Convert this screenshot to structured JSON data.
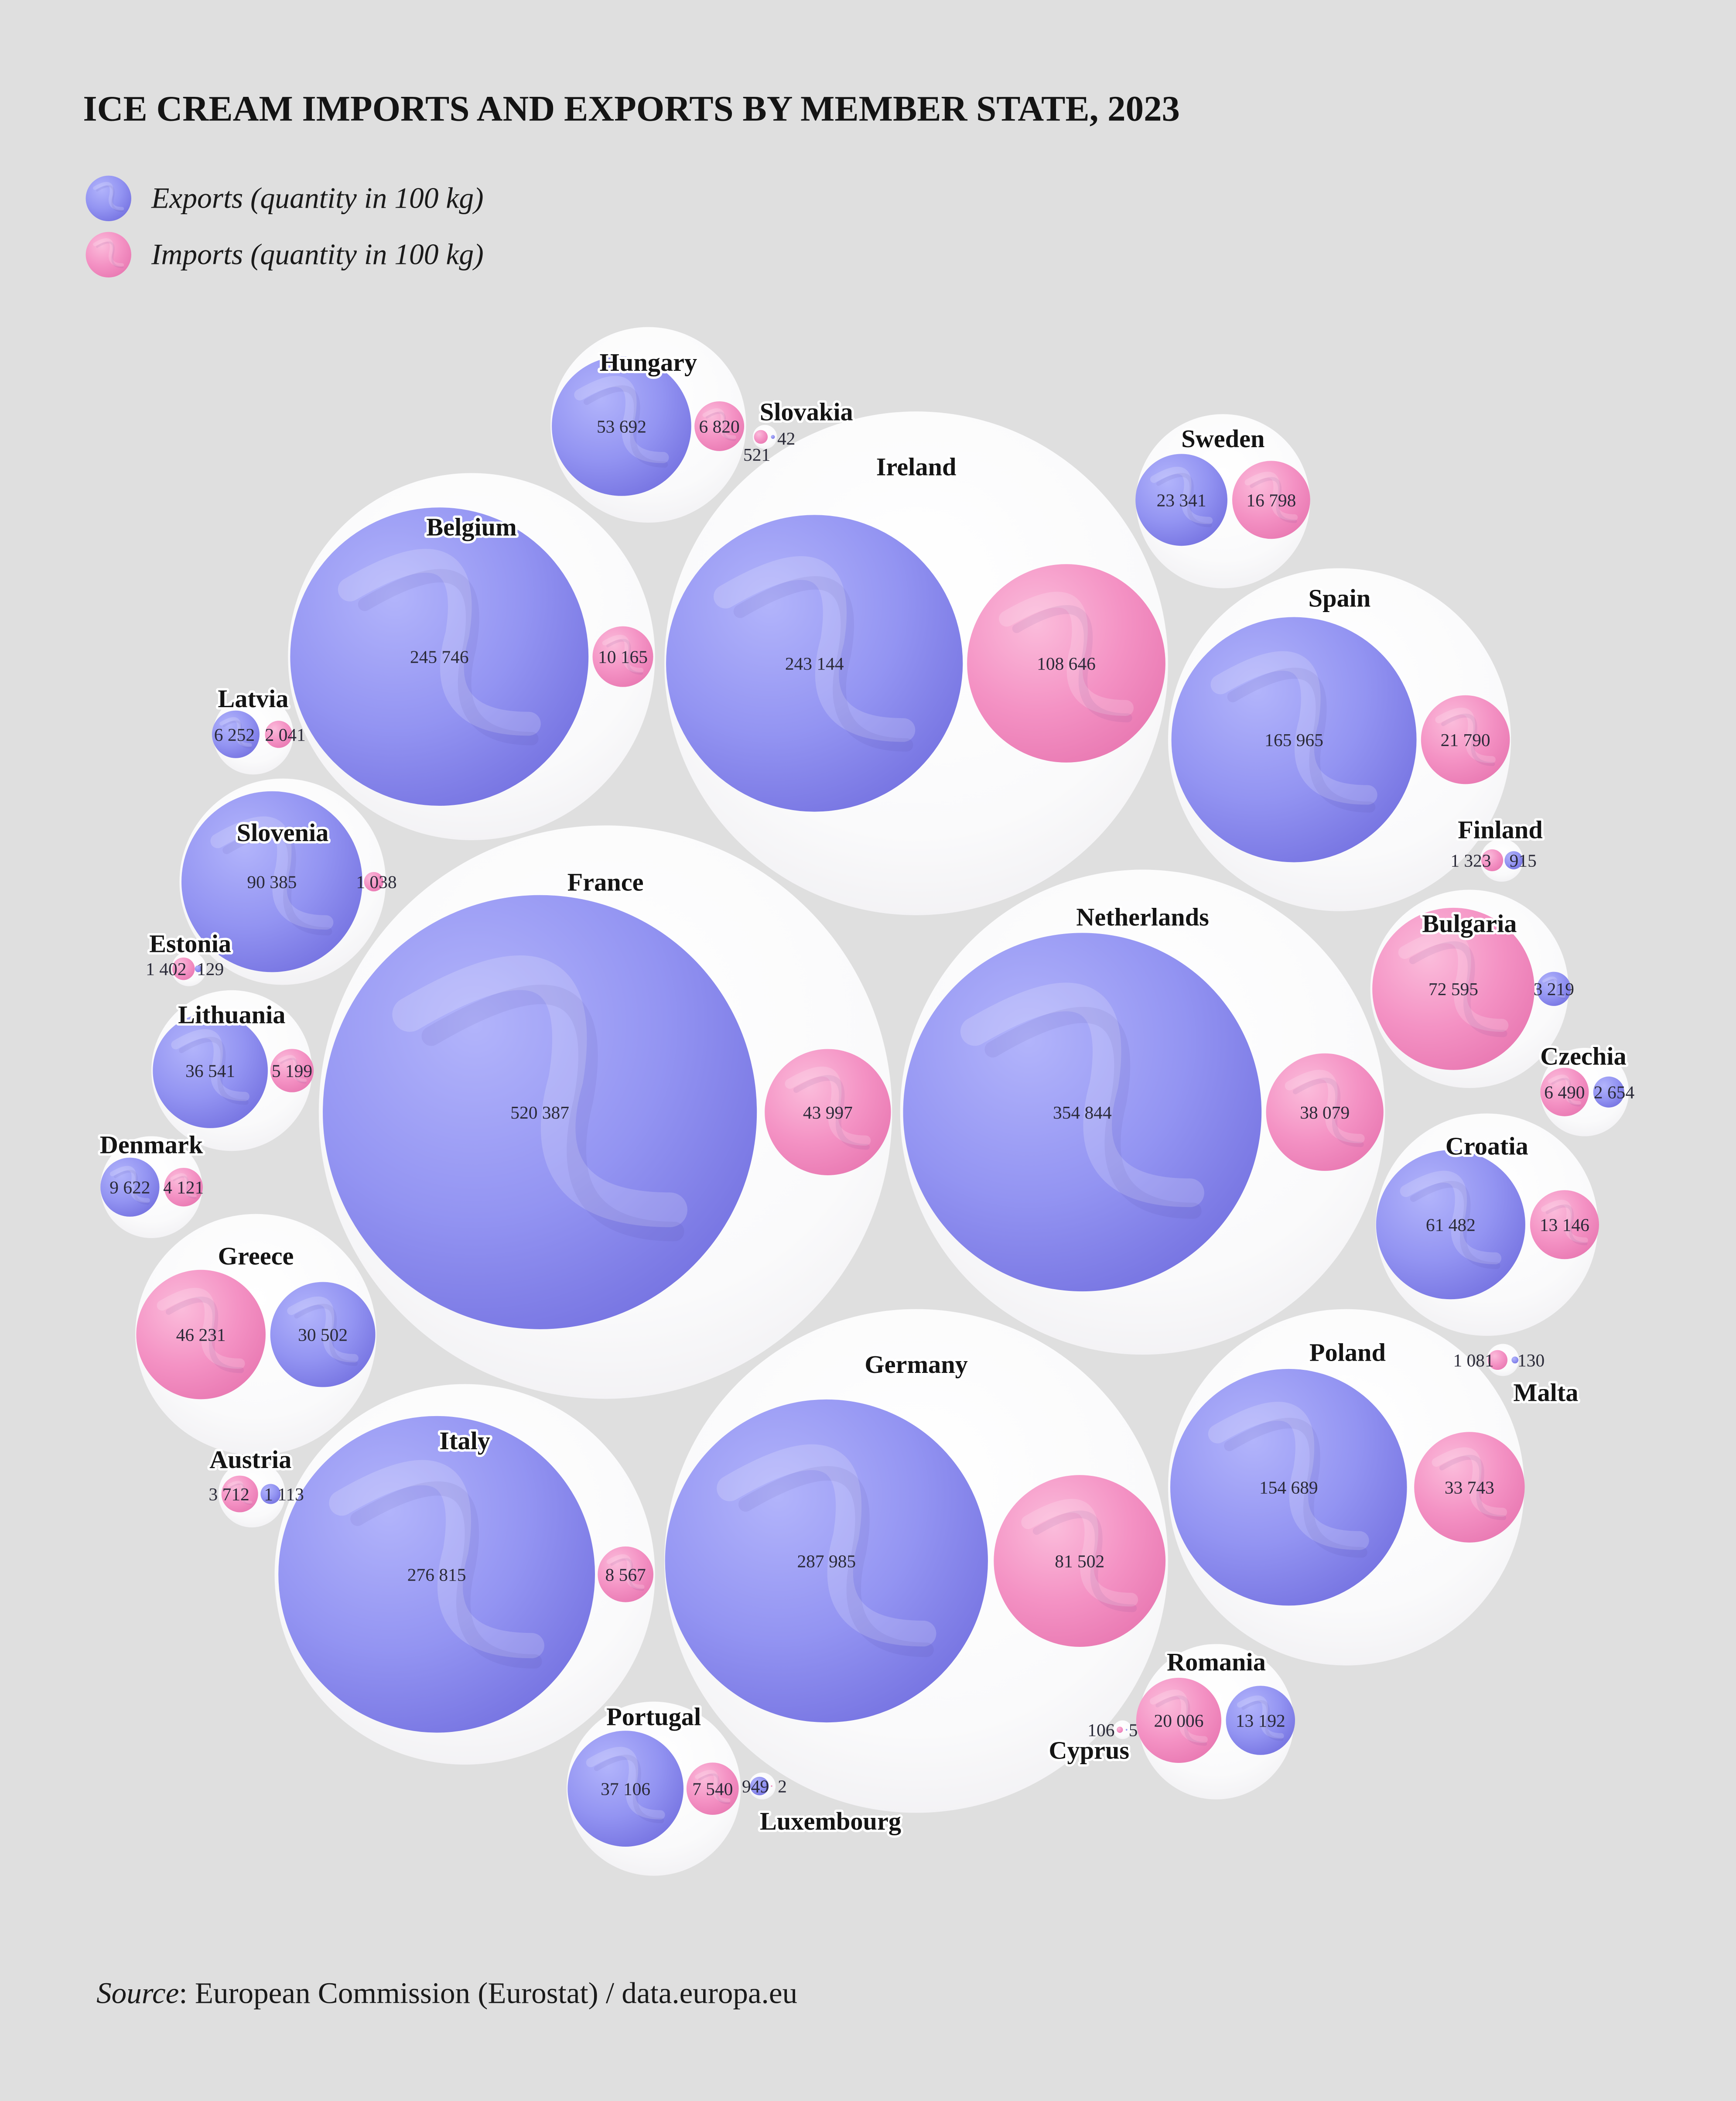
{
  "chart_data": {
    "type": "scatter",
    "title": "ICE CREAM IMPORTS AND EXPORTS BY MEMBER STATE, 2023",
    "categories": [
      "Austria",
      "Belgium",
      "Bulgaria",
      "Croatia",
      "Cyprus",
      "Czechia",
      "Denmark",
      "Estonia",
      "Finland",
      "France",
      "Germany",
      "Greece",
      "Hungary",
      "Ireland",
      "Italy",
      "Latvia",
      "Lithuania",
      "Luxembourg",
      "Malta",
      "Netherlands",
      "Poland",
      "Portugal",
      "Romania",
      "Slovakia",
      "Slovenia",
      "Spain",
      "Sweden"
    ],
    "series": [
      {
        "name": "Exports (quantity in 100 kg)",
        "values": [
          1113,
          245746,
          3219,
          61482,
          5,
          2654,
          9622,
          129,
          915,
          520387,
          287985,
          30502,
          53692,
          243144,
          276815,
          6252,
          36541,
          949,
          130,
          354844,
          154689,
          37106,
          13192,
          42,
          90385,
          165965,
          23341
        ]
      },
      {
        "name": "Imports (quantity in 100 kg)",
        "values": [
          3712,
          10165,
          72595,
          13146,
          106,
          6490,
          4121,
          1402,
          1323,
          43997,
          81502,
          46231,
          6820,
          108646,
          8567,
          2041,
          5199,
          2,
          1081,
          38079,
          33743,
          7540,
          20006,
          521,
          1038,
          21790,
          16798
        ]
      }
    ],
    "legend": "top-left",
    "grid": false
  },
  "source": {
    "label": "Source",
    "text": ": European Commission (Eurostat) / data.europa.eu"
  },
  "colors": {
    "exports": "#9394f2",
    "imports": "#f492c4",
    "background": "#dfdfdf",
    "bubble_group": "#ffffff"
  }
}
